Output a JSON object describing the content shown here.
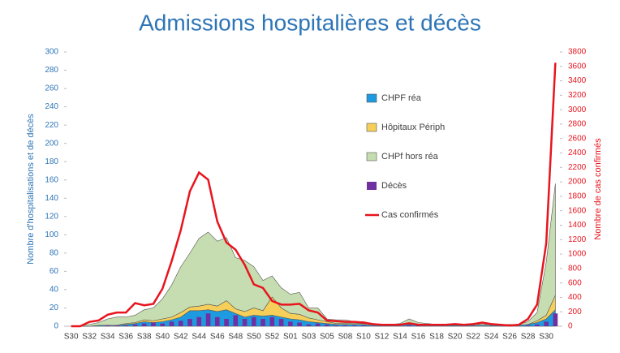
{
  "chart_data": {
    "type": "area",
    "title": "Admissions hospitalières et décès",
    "y_label": "Nombre d'hospitalisations et de décès",
    "y2_label": "Nombre de cas confirmés",
    "categories": [
      "S30",
      null,
      "S32",
      null,
      "S34",
      null,
      "S36",
      null,
      "S38",
      null,
      "S40",
      null,
      "S42",
      null,
      "S44",
      null,
      "S46",
      null,
      "S48",
      null,
      "S50",
      null,
      "S52",
      null,
      "S01",
      null,
      "S03",
      null,
      "S05",
      null,
      "S08",
      null,
      "S10",
      null,
      "S12",
      null,
      "S14",
      null,
      "S16",
      null,
      "S18",
      null,
      "S20",
      null,
      "S22",
      null,
      "S24",
      null,
      "S26",
      null,
      "S28",
      null,
      "S30",
      null
    ],
    "ylim": [
      0,
      300
    ],
    "yticks": [
      0,
      20,
      40,
      60,
      80,
      100,
      120,
      140,
      160,
      180,
      200,
      220,
      240,
      260,
      280,
      300
    ],
    "y2lim": [
      0,
      3800
    ],
    "y2ticks": [
      0,
      200,
      400,
      600,
      800,
      1000,
      1200,
      1400,
      1600,
      1800,
      2000,
      2200,
      2400,
      2600,
      2800,
      3000,
      3200,
      3400,
      3600,
      3800
    ],
    "stacked": true,
    "legend": "top-center",
    "series": [
      {
        "name": "CHPF réa",
        "type": "area",
        "color": "#1e9be0",
        "values": [
          0,
          0,
          0,
          1,
          1,
          1,
          2,
          3,
          5,
          4,
          5,
          7,
          10,
          17,
          17,
          18,
          16,
          18,
          14,
          10,
          12,
          11,
          12,
          10,
          8,
          7,
          5,
          4,
          3,
          2,
          2,
          2,
          2,
          1,
          1,
          1,
          1,
          2,
          1,
          1,
          1,
          1,
          1,
          1,
          1,
          1,
          1,
          1,
          1,
          1,
          2,
          4,
          8,
          18
        ]
      },
      {
        "name": "Hôpitaux Périph",
        "type": "area",
        "color": "#f5cf5a",
        "values": [
          0,
          0,
          0,
          0,
          0,
          0,
          1,
          1,
          2,
          2,
          3,
          3,
          5,
          4,
          5,
          6,
          6,
          10,
          5,
          6,
          8,
          6,
          20,
          10,
          6,
          6,
          4,
          3,
          2,
          1,
          1,
          1,
          1,
          1,
          0,
          0,
          0,
          1,
          1,
          0,
          0,
          0,
          0,
          0,
          0,
          0,
          0,
          0,
          0,
          0,
          0,
          2,
          4,
          16
        ]
      },
      {
        "name": "CHPf hors réa",
        "type": "area",
        "color": "#c5ddb0",
        "values": [
          0,
          0,
          2,
          3,
          7,
          9,
          7,
          8,
          11,
          14,
          22,
          35,
          50,
          59,
          74,
          79,
          71,
          69,
          56,
          56,
          45,
          33,
          23,
          22,
          21,
          24,
          11,
          13,
          3,
          4,
          4,
          2,
          2,
          1,
          1,
          1,
          2,
          5,
          2,
          2,
          1,
          1,
          1,
          1,
          1,
          1,
          1,
          1,
          1,
          1,
          3,
          9,
          58,
          122
        ]
      },
      {
        "name": "Décès",
        "type": "bar",
        "color": "#7030a0",
        "values": [
          0,
          0,
          0,
          0,
          1,
          1,
          1,
          2,
          3,
          4,
          3,
          5,
          6,
          8,
          10,
          14,
          10,
          8,
          12,
          8,
          10,
          8,
          10,
          8,
          5,
          4,
          2,
          3,
          2,
          1,
          1,
          1,
          1,
          0,
          0,
          0,
          0,
          1,
          1,
          0,
          0,
          0,
          0,
          0,
          0,
          0,
          0,
          0,
          0,
          0,
          1,
          2,
          5,
          14
        ]
      },
      {
        "name": "Cas confirmés",
        "type": "line",
        "axis": "y2",
        "color": "#e8141e",
        "values": [
          0,
          0,
          60,
          80,
          160,
          190,
          190,
          320,
          290,
          310,
          520,
          900,
          1330,
          1870,
          2130,
          2030,
          1450,
          1160,
          1060,
          850,
          580,
          530,
          350,
          300,
          300,
          310,
          220,
          190,
          80,
          70,
          60,
          60,
          50,
          30,
          20,
          20,
          20,
          40,
          20,
          20,
          20,
          20,
          30,
          20,
          30,
          50,
          30,
          20,
          10,
          20,
          100,
          300,
          1150,
          3650
        ]
      }
    ]
  }
}
